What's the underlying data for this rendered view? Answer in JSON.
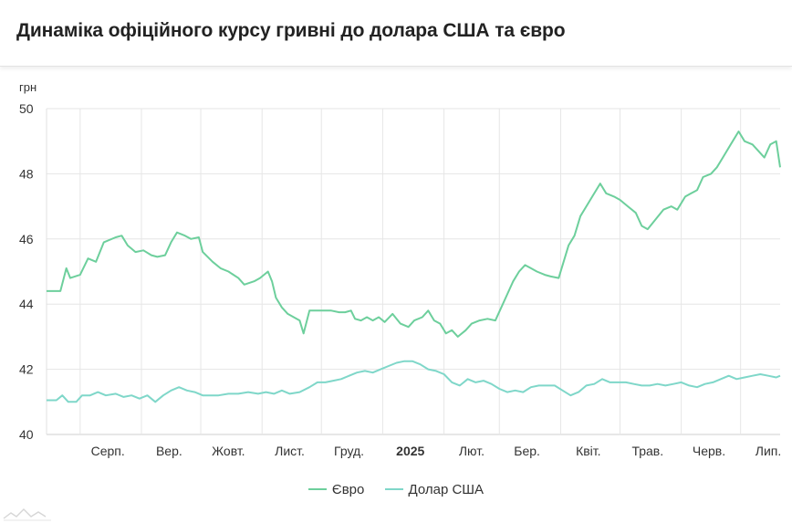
{
  "title": "Динаміка офіційного курсу гривні до долара США та євро",
  "chart_data": {
    "type": "line",
    "title": "Динаміка офіційного курсу гривні до долара США та євро",
    "ylabel": "грн",
    "ylim": [
      40,
      50
    ],
    "yticks": [
      40,
      42,
      44,
      46,
      48,
      50
    ],
    "xlim": [
      "2024-07-15",
      "2025-07-21"
    ],
    "xticks": [
      {
        "label": "Серп.",
        "date": "2024-08-15"
      },
      {
        "label": "Вер.",
        "date": "2024-09-15"
      },
      {
        "label": "Жовт.",
        "date": "2024-10-15"
      },
      {
        "label": "Лист.",
        "date": "2024-11-15"
      },
      {
        "label": "Груд.",
        "date": "2024-12-15"
      },
      {
        "label": "2025",
        "date": "2025-01-15",
        "bold": true
      },
      {
        "label": "Лют.",
        "date": "2025-02-15"
      },
      {
        "label": "Бер.",
        "date": "2025-03-15"
      },
      {
        "label": "Квіт.",
        "date": "2025-04-15"
      },
      {
        "label": "Трав.",
        "date": "2025-05-15"
      },
      {
        "label": "Черв.",
        "date": "2025-06-15"
      },
      {
        "label": "Лип.",
        "date": "2025-07-15"
      }
    ],
    "gridlines": [
      "2024-08-01",
      "2024-09-01",
      "2024-10-01",
      "2024-11-01",
      "2024-12-01",
      "2025-01-01",
      "2025-02-01",
      "2025-03-01",
      "2025-04-01",
      "2025-05-01",
      "2025-06-01",
      "2025-07-01"
    ],
    "grid": true,
    "legend_position": "bottom",
    "series": [
      {
        "name": "Євро",
        "color": "#6dcf9c",
        "points": [
          [
            "2024-07-15",
            44.4
          ],
          [
            "2024-07-22",
            44.4
          ],
          [
            "2024-07-25",
            45.1
          ],
          [
            "2024-07-27",
            44.8
          ],
          [
            "2024-08-01",
            44.9
          ],
          [
            "2024-08-05",
            45.4
          ],
          [
            "2024-08-09",
            45.3
          ],
          [
            "2024-08-13",
            45.9
          ],
          [
            "2024-08-19",
            46.05
          ],
          [
            "2024-08-22",
            46.1
          ],
          [
            "2024-08-25",
            45.8
          ],
          [
            "2024-08-29",
            45.6
          ],
          [
            "2024-09-02",
            45.65
          ],
          [
            "2024-09-06",
            45.5
          ],
          [
            "2024-09-09",
            45.45
          ],
          [
            "2024-09-13",
            45.5
          ],
          [
            "2024-09-16",
            45.9
          ],
          [
            "2024-09-19",
            46.2
          ],
          [
            "2024-09-23",
            46.1
          ],
          [
            "2024-09-26",
            46.0
          ],
          [
            "2024-09-30",
            46.05
          ],
          [
            "2024-10-02",
            45.6
          ],
          [
            "2024-10-07",
            45.3
          ],
          [
            "2024-10-11",
            45.1
          ],
          [
            "2024-10-15",
            45.0
          ],
          [
            "2024-10-20",
            44.8
          ],
          [
            "2024-10-23",
            44.6
          ],
          [
            "2024-10-28",
            44.7
          ],
          [
            "2024-10-31",
            44.8
          ],
          [
            "2024-11-04",
            45.0
          ],
          [
            "2024-11-06",
            44.7
          ],
          [
            "2024-11-08",
            44.2
          ],
          [
            "2024-11-11",
            43.9
          ],
          [
            "2024-11-14",
            43.7
          ],
          [
            "2024-11-17",
            43.6
          ],
          [
            "2024-11-20",
            43.5
          ],
          [
            "2024-11-22",
            43.1
          ],
          [
            "2024-11-25",
            43.8
          ],
          [
            "2024-11-28",
            43.8
          ],
          [
            "2024-12-02",
            43.8
          ],
          [
            "2024-12-06",
            43.8
          ],
          [
            "2024-12-10",
            43.75
          ],
          [
            "2024-12-13",
            43.75
          ],
          [
            "2024-12-16",
            43.8
          ],
          [
            "2024-12-18",
            43.55
          ],
          [
            "2024-12-21",
            43.5
          ],
          [
            "2024-12-24",
            43.6
          ],
          [
            "2024-12-27",
            43.5
          ],
          [
            "2024-12-30",
            43.6
          ],
          [
            "2025-01-02",
            43.45
          ],
          [
            "2025-01-06",
            43.7
          ],
          [
            "2025-01-10",
            43.4
          ],
          [
            "2025-01-14",
            43.3
          ],
          [
            "2025-01-17",
            43.5
          ],
          [
            "2025-01-21",
            43.6
          ],
          [
            "2025-01-24",
            43.8
          ],
          [
            "2025-01-27",
            43.5
          ],
          [
            "2025-01-30",
            43.4
          ],
          [
            "2025-02-02",
            43.1
          ],
          [
            "2025-02-05",
            43.2
          ],
          [
            "2025-02-08",
            43.0
          ],
          [
            "2025-02-12",
            43.2
          ],
          [
            "2025-02-15",
            43.4
          ],
          [
            "2025-02-19",
            43.5
          ],
          [
            "2025-02-23",
            43.55
          ],
          [
            "2025-02-27",
            43.5
          ],
          [
            "2025-03-02",
            43.9
          ],
          [
            "2025-03-05",
            44.3
          ],
          [
            "2025-03-08",
            44.7
          ],
          [
            "2025-03-11",
            45.0
          ],
          [
            "2025-03-14",
            45.2
          ],
          [
            "2025-03-17",
            45.1
          ],
          [
            "2025-03-20",
            45.0
          ],
          [
            "2025-03-24",
            44.9
          ],
          [
            "2025-03-27",
            44.85
          ],
          [
            "2025-03-31",
            44.8
          ],
          [
            "2025-04-02",
            45.2
          ],
          [
            "2025-04-05",
            45.8
          ],
          [
            "2025-04-08",
            46.1
          ],
          [
            "2025-04-11",
            46.7
          ],
          [
            "2025-04-14",
            47.0
          ],
          [
            "2025-04-17",
            47.3
          ],
          [
            "2025-04-21",
            47.7
          ],
          [
            "2025-04-24",
            47.4
          ],
          [
            "2025-04-28",
            47.3
          ],
          [
            "2025-05-01",
            47.2
          ],
          [
            "2025-05-05",
            47.0
          ],
          [
            "2025-05-09",
            46.8
          ],
          [
            "2025-05-12",
            46.4
          ],
          [
            "2025-05-15",
            46.3
          ],
          [
            "2025-05-19",
            46.6
          ],
          [
            "2025-05-23",
            46.9
          ],
          [
            "2025-05-27",
            47.0
          ],
          [
            "2025-05-30",
            46.9
          ],
          [
            "2025-06-03",
            47.3
          ],
          [
            "2025-06-06",
            47.4
          ],
          [
            "2025-06-09",
            47.5
          ],
          [
            "2025-06-12",
            47.9
          ],
          [
            "2025-06-16",
            48.0
          ],
          [
            "2025-06-19",
            48.2
          ],
          [
            "2025-06-22",
            48.5
          ],
          [
            "2025-06-26",
            48.9
          ],
          [
            "2025-06-30",
            49.3
          ],
          [
            "2025-07-03",
            49.0
          ],
          [
            "2025-07-07",
            48.9
          ],
          [
            "2025-07-10",
            48.7
          ],
          [
            "2025-07-13",
            48.5
          ],
          [
            "2025-07-16",
            48.9
          ],
          [
            "2025-07-19",
            49.0
          ],
          [
            "2025-07-21",
            48.2
          ]
        ]
      },
      {
        "name": "Долар США",
        "color": "#7fd7c9",
        "points": [
          [
            "2024-07-15",
            41.05
          ],
          [
            "2024-07-20",
            41.05
          ],
          [
            "2024-07-23",
            41.2
          ],
          [
            "2024-07-26",
            41.0
          ],
          [
            "2024-07-30",
            41.0
          ],
          [
            "2024-08-02",
            41.2
          ],
          [
            "2024-08-06",
            41.2
          ],
          [
            "2024-08-10",
            41.3
          ],
          [
            "2024-08-14",
            41.2
          ],
          [
            "2024-08-19",
            41.25
          ],
          [
            "2024-08-23",
            41.15
          ],
          [
            "2024-08-27",
            41.2
          ],
          [
            "2024-08-31",
            41.1
          ],
          [
            "2024-09-04",
            41.2
          ],
          [
            "2024-09-08",
            41.0
          ],
          [
            "2024-09-12",
            41.2
          ],
          [
            "2024-09-16",
            41.35
          ],
          [
            "2024-09-20",
            41.45
          ],
          [
            "2024-09-24",
            41.35
          ],
          [
            "2024-09-28",
            41.3
          ],
          [
            "2024-10-02",
            41.2
          ],
          [
            "2024-10-06",
            41.2
          ],
          [
            "2024-10-10",
            41.2
          ],
          [
            "2024-10-15",
            41.25
          ],
          [
            "2024-10-20",
            41.25
          ],
          [
            "2024-10-25",
            41.3
          ],
          [
            "2024-10-30",
            41.25
          ],
          [
            "2024-11-03",
            41.3
          ],
          [
            "2024-11-07",
            41.25
          ],
          [
            "2024-11-11",
            41.35
          ],
          [
            "2024-11-15",
            41.25
          ],
          [
            "2024-11-20",
            41.3
          ],
          [
            "2024-11-25",
            41.45
          ],
          [
            "2024-11-29",
            41.6
          ],
          [
            "2024-12-03",
            41.6
          ],
          [
            "2024-12-07",
            41.65
          ],
          [
            "2024-12-11",
            41.7
          ],
          [
            "2024-12-15",
            41.8
          ],
          [
            "2024-12-19",
            41.9
          ],
          [
            "2024-12-23",
            41.95
          ],
          [
            "2024-12-27",
            41.9
          ],
          [
            "2024-12-31",
            42.0
          ],
          [
            "2025-01-04",
            42.1
          ],
          [
            "2025-01-08",
            42.2
          ],
          [
            "2025-01-12",
            42.25
          ],
          [
            "2025-01-16",
            42.25
          ],
          [
            "2025-01-20",
            42.15
          ],
          [
            "2025-01-24",
            42.0
          ],
          [
            "2025-01-28",
            41.95
          ],
          [
            "2025-02-01",
            41.85
          ],
          [
            "2025-02-05",
            41.6
          ],
          [
            "2025-02-09",
            41.5
          ],
          [
            "2025-02-13",
            41.7
          ],
          [
            "2025-02-17",
            41.6
          ],
          [
            "2025-02-21",
            41.65
          ],
          [
            "2025-02-25",
            41.55
          ],
          [
            "2025-03-01",
            41.4
          ],
          [
            "2025-03-05",
            41.3
          ],
          [
            "2025-03-09",
            41.35
          ],
          [
            "2025-03-13",
            41.3
          ],
          [
            "2025-03-17",
            41.45
          ],
          [
            "2025-03-21",
            41.5
          ],
          [
            "2025-03-25",
            41.5
          ],
          [
            "2025-03-29",
            41.5
          ],
          [
            "2025-04-02",
            41.35
          ],
          [
            "2025-04-06",
            41.2
          ],
          [
            "2025-04-10",
            41.3
          ],
          [
            "2025-04-14",
            41.5
          ],
          [
            "2025-04-18",
            41.55
          ],
          [
            "2025-04-22",
            41.7
          ],
          [
            "2025-04-26",
            41.6
          ],
          [
            "2025-04-30",
            41.6
          ],
          [
            "2025-05-04",
            41.6
          ],
          [
            "2025-05-08",
            41.55
          ],
          [
            "2025-05-12",
            41.5
          ],
          [
            "2025-05-16",
            41.5
          ],
          [
            "2025-05-20",
            41.55
          ],
          [
            "2025-05-24",
            41.5
          ],
          [
            "2025-05-28",
            41.55
          ],
          [
            "2025-06-01",
            41.6
          ],
          [
            "2025-06-05",
            41.5
          ],
          [
            "2025-06-09",
            41.45
          ],
          [
            "2025-06-13",
            41.55
          ],
          [
            "2025-06-17",
            41.6
          ],
          [
            "2025-06-21",
            41.7
          ],
          [
            "2025-06-25",
            41.8
          ],
          [
            "2025-06-29",
            41.7
          ],
          [
            "2025-07-03",
            41.75
          ],
          [
            "2025-07-07",
            41.8
          ],
          [
            "2025-07-11",
            41.85
          ],
          [
            "2025-07-15",
            41.8
          ],
          [
            "2025-07-19",
            41.75
          ],
          [
            "2025-07-21",
            41.8
          ]
        ]
      }
    ]
  }
}
